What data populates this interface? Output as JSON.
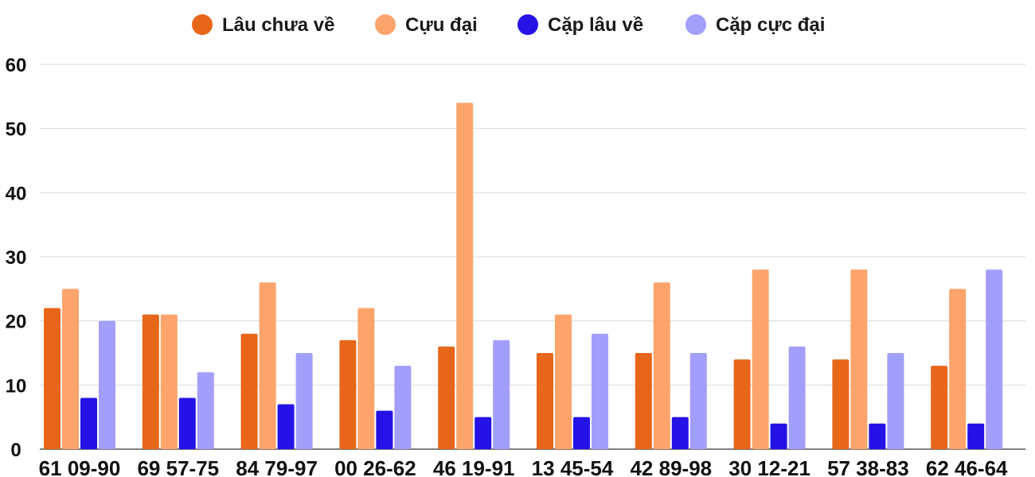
{
  "chart_data": {
    "type": "bar",
    "title": "",
    "xlabel": "",
    "ylabel": "",
    "ylim": [
      0,
      60
    ],
    "yticks": [
      0,
      10,
      20,
      30,
      40,
      50,
      60
    ],
    "grid": true,
    "legend_position": "top-center",
    "categories": [
      "61 09-90",
      "69 57-75",
      "84 79-97",
      "00 26-62",
      "46 19-91",
      "13 45-54",
      "42 89-98",
      "30 12-21",
      "57 38-83",
      "62 46-64"
    ],
    "series": [
      {
        "name": "Lâu chưa về",
        "color": "#e8661a",
        "values": [
          22,
          21,
          18,
          17,
          16,
          15,
          15,
          14,
          14,
          13
        ]
      },
      {
        "name": "Cựu đại",
        "color": "#fca46b",
        "values": [
          25,
          21,
          26,
          22,
          54,
          21,
          26,
          28,
          28,
          25
        ]
      },
      {
        "name": "Cặp lâu về",
        "color": "#2412e6",
        "values": [
          8,
          8,
          7,
          6,
          5,
          5,
          5,
          4,
          4,
          4
        ]
      },
      {
        "name": "Cặp cực đại",
        "color": "#a29ffb",
        "values": [
          20,
          12,
          15,
          13,
          17,
          18,
          15,
          16,
          15,
          28
        ]
      }
    ]
  }
}
